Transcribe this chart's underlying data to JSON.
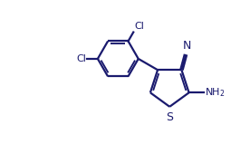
{
  "bg_color": "#ffffff",
  "bond_color": "#1a1a6e",
  "bond_width": 1.6,
  "text_color": "#1a1a6e",
  "figure_width": 2.76,
  "figure_height": 1.59,
  "dpi": 100,
  "xlim": [
    0,
    10
  ],
  "ylim": [
    0,
    5.76
  ]
}
